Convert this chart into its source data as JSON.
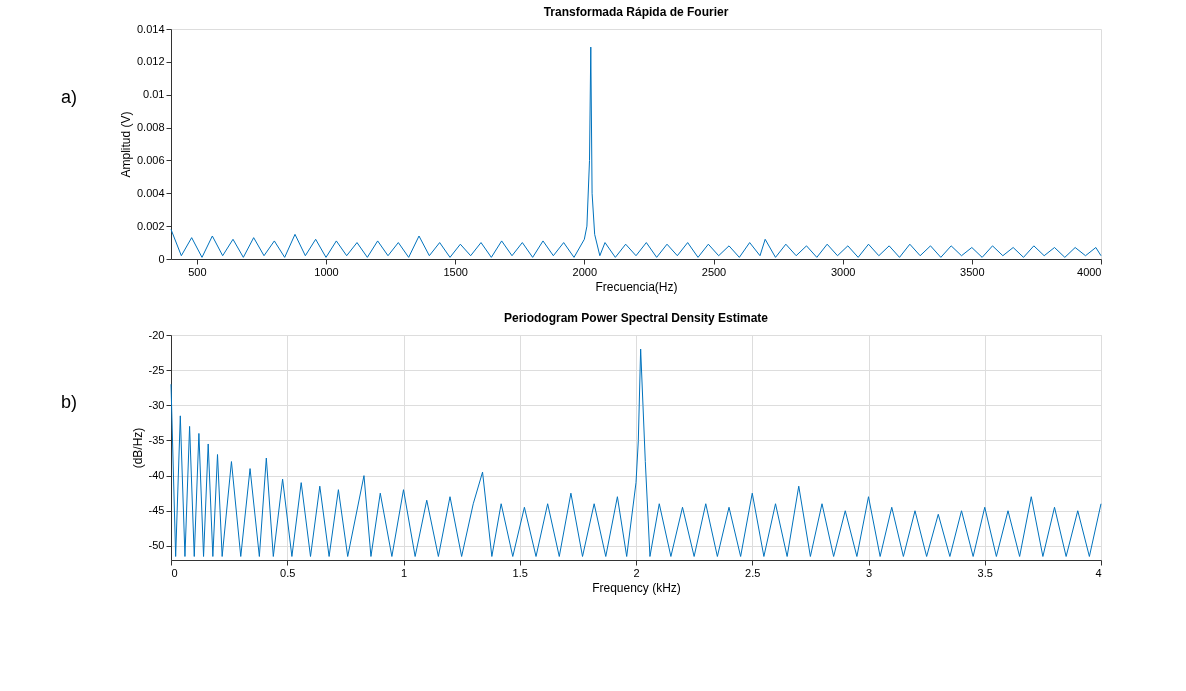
{
  "chart_data": [
    {
      "type": "line",
      "title": "Transformada Rápida de Fourier",
      "xlabel": "Frecuencia(Hz)",
      "ylabel": "Amplitud (V)",
      "annotations": [
        "a)"
      ],
      "grid": false,
      "xlim": [
        400,
        4000
      ],
      "ylim": [
        0,
        0.014
      ],
      "xticks": [
        500,
        1000,
        1500,
        2000,
        2500,
        3000,
        3500,
        4000
      ],
      "yticks": [
        0,
        0.002,
        0.004,
        0.006,
        0.008,
        0.01,
        0.012,
        0.014
      ],
      "series": [
        {
          "color": "#0072bd",
          "x": [
            400,
            440,
            480,
            520,
            560,
            600,
            640,
            680,
            720,
            760,
            800,
            840,
            880,
            920,
            960,
            1000,
            1040,
            1080,
            1120,
            1160,
            1200,
            1240,
            1280,
            1320,
            1360,
            1400,
            1440,
            1480,
            1520,
            1560,
            1600,
            1640,
            1680,
            1720,
            1760,
            1800,
            1840,
            1880,
            1920,
            1960,
            2000,
            2010,
            2020,
            2025,
            2030,
            2040,
            2060,
            2080,
            2120,
            2160,
            2200,
            2240,
            2280,
            2320,
            2360,
            2400,
            2440,
            2480,
            2520,
            2560,
            2600,
            2640,
            2680,
            2700,
            2740,
            2780,
            2820,
            2860,
            2900,
            2940,
            2980,
            3020,
            3060,
            3100,
            3140,
            3180,
            3220,
            3260,
            3300,
            3340,
            3380,
            3420,
            3460,
            3500,
            3540,
            3580,
            3620,
            3660,
            3700,
            3740,
            3780,
            3820,
            3860,
            3900,
            3940,
            3980,
            4000
          ],
          "values": [
            0.0018,
            0.0002,
            0.0013,
            0.0001,
            0.0014,
            0.0002,
            0.0012,
            0.0001,
            0.0013,
            0.0002,
            0.0011,
            0.0001,
            0.0015,
            0.0002,
            0.0012,
            0.0001,
            0.0011,
            0.0002,
            0.001,
            0.0001,
            0.0011,
            0.0002,
            0.001,
            0.0001,
            0.0014,
            0.0002,
            0.001,
            0.0001,
            0.0009,
            0.0002,
            0.001,
            0.0001,
            0.0011,
            0.0002,
            0.001,
            0.0001,
            0.0011,
            0.0002,
            0.001,
            0.0001,
            0.0012,
            0.002,
            0.006,
            0.0129,
            0.004,
            0.0015,
            0.0002,
            0.001,
            0.0001,
            0.0009,
            0.0002,
            0.001,
            0.0001,
            0.0009,
            0.0002,
            0.001,
            0.0001,
            0.0009,
            0.0002,
            0.0008,
            0.0001,
            0.001,
            0.0002,
            0.0012,
            0.0001,
            0.0009,
            0.0002,
            0.0008,
            0.0001,
            0.0009,
            0.0002,
            0.0008,
            0.0001,
            0.0009,
            0.0002,
            0.0008,
            0.0001,
            0.0009,
            0.0002,
            0.0008,
            0.0001,
            0.0008,
            0.0002,
            0.0007,
            0.0001,
            0.0008,
            0.0002,
            0.0007,
            0.0001,
            0.0008,
            0.0002,
            0.0007,
            0.0001,
            0.0007,
            0.0002,
            0.0007,
            0.0002
          ]
        }
      ]
    },
    {
      "type": "line",
      "title": "Periodogram Power Spectral Density Estimate",
      "xlabel": "Frequency (kHz)",
      "ylabel": "(dB/Hz)",
      "annotations": [
        "b)"
      ],
      "grid": true,
      "xlim": [
        0,
        4
      ],
      "ylim": [
        -52,
        -20
      ],
      "xticks": [
        0,
        0.5,
        1,
        1.5,
        2,
        2.5,
        3,
        3.5,
        4
      ],
      "yticks": [
        -50,
        -45,
        -40,
        -35,
        -30,
        -25,
        -20
      ],
      "series": [
        {
          "color": "#0072bd",
          "x": [
            0,
            0.02,
            0.04,
            0.06,
            0.08,
            0.1,
            0.12,
            0.14,
            0.16,
            0.18,
            0.2,
            0.22,
            0.26,
            0.3,
            0.34,
            0.38,
            0.41,
            0.44,
            0.48,
            0.52,
            0.56,
            0.6,
            0.64,
            0.68,
            0.72,
            0.76,
            0.83,
            0.86,
            0.9,
            0.95,
            1.0,
            1.05,
            1.1,
            1.15,
            1.2,
            1.25,
            1.3,
            1.34,
            1.38,
            1.42,
            1.47,
            1.52,
            1.57,
            1.62,
            1.67,
            1.72,
            1.77,
            1.82,
            1.87,
            1.92,
            1.96,
            2.0,
            2.01,
            2.02,
            2.03,
            2.04,
            2.06,
            2.1,
            2.15,
            2.2,
            2.25,
            2.3,
            2.35,
            2.4,
            2.45,
            2.5,
            2.55,
            2.6,
            2.65,
            2.7,
            2.75,
            2.8,
            2.85,
            2.9,
            2.95,
            3.0,
            3.05,
            3.1,
            3.15,
            3.2,
            3.25,
            3.3,
            3.35,
            3.4,
            3.45,
            3.5,
            3.55,
            3.6,
            3.65,
            3.7,
            3.75,
            3.8,
            3.85,
            3.9,
            3.95,
            4.0
          ],
          "values": [
            -27,
            -51.5,
            -31.5,
            -51.5,
            -33,
            -51.5,
            -34,
            -51.5,
            -35.5,
            -51.5,
            -37,
            -51.5,
            -38,
            -51.5,
            -39,
            -51.5,
            -37.5,
            -51.5,
            -40.5,
            -51.5,
            -41,
            -51.5,
            -41.5,
            -51.5,
            -42,
            -51.5,
            -40,
            -51.5,
            -42.5,
            -51.5,
            -42,
            -51.5,
            -43.5,
            -51.5,
            -43,
            -51.5,
            -44,
            -39.5,
            -51.5,
            -44,
            -51.5,
            -44.5,
            -51.5,
            -44,
            -51.5,
            -42.5,
            -51.5,
            -44,
            -51.5,
            -43,
            -51.5,
            -41,
            -35,
            -22,
            -30,
            -38,
            -51.5,
            -44,
            -51.5,
            -44.5,
            -51.5,
            -44,
            -51.5,
            -44.5,
            -51.5,
            -42.5,
            -51.5,
            -44,
            -51.5,
            -41.5,
            -51.5,
            -44,
            -51.5,
            -45,
            -51.5,
            -43,
            -51.5,
            -44.5,
            -51.5,
            -45,
            -51.5,
            -45.5,
            -51.5,
            -45,
            -51.5,
            -44.5,
            -51.5,
            -45,
            -51.5,
            -43,
            -51.5,
            -44.5,
            -51.5,
            -45,
            -51.5,
            -44
          ]
        }
      ]
    }
  ]
}
